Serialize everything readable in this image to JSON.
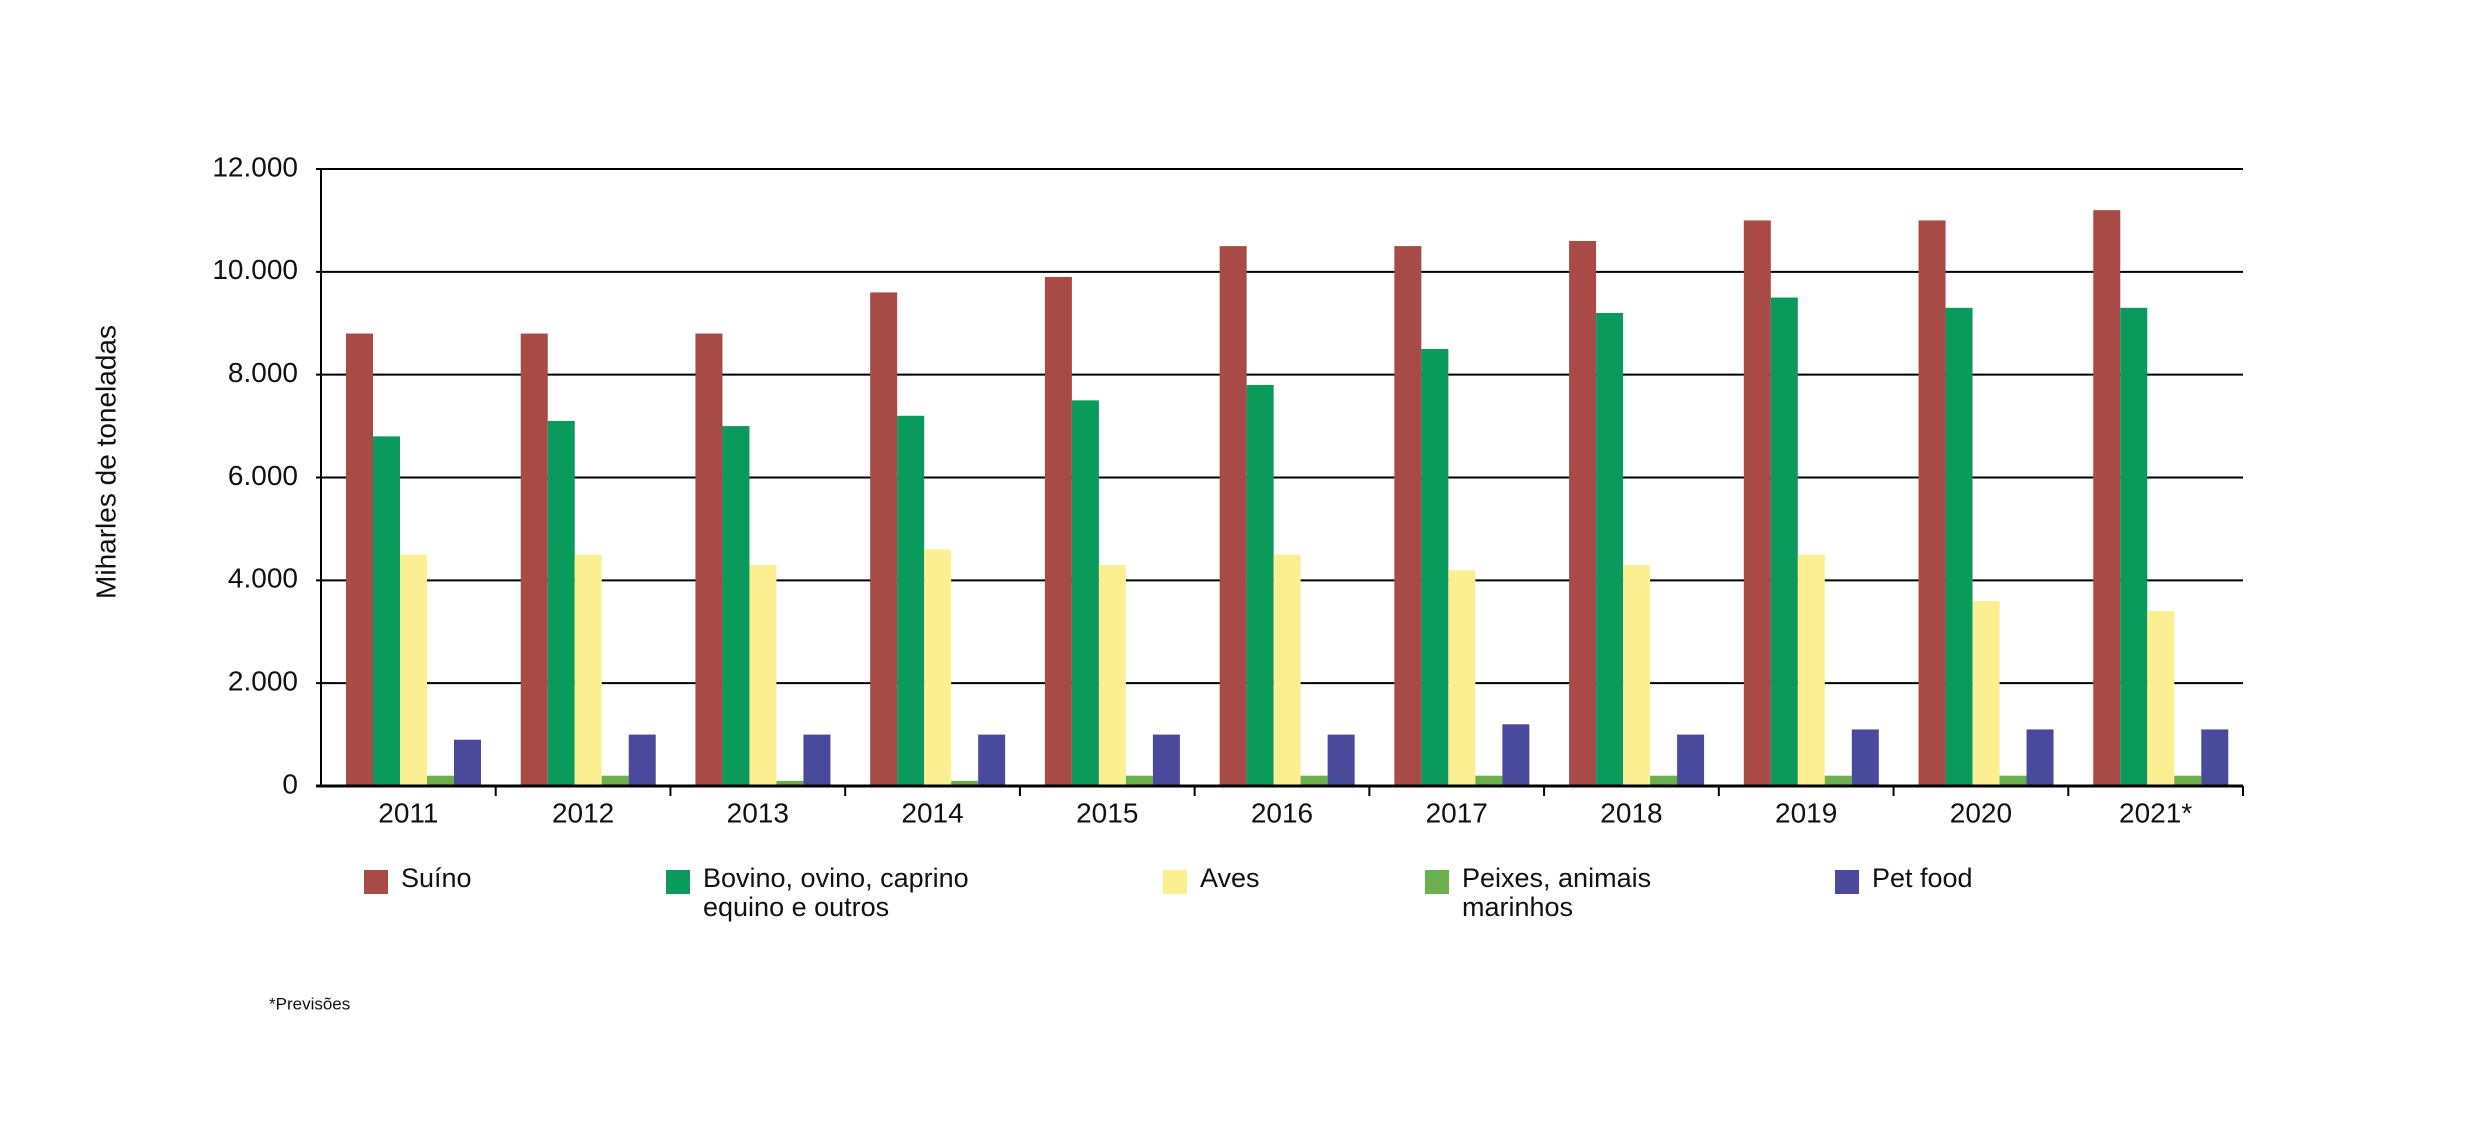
{
  "chart_data": {
    "type": "bar",
    "y_label": "Miharles de toneladas",
    "footnote": "*Previsões",
    "categories": [
      "2011",
      "2012",
      "2013",
      "2014",
      "2015",
      "2016",
      "2017",
      "2018",
      "2019",
      "2020",
      "2021*"
    ],
    "series": [
      {
        "name": "Suíno",
        "color": "#a84a45",
        "values": [
          8800,
          8800,
          8800,
          9600,
          9900,
          10500,
          10500,
          10600,
          11000,
          11000,
          11200
        ]
      },
      {
        "name": "Bovino, ovino, caprino\nequino e outros",
        "color": "#0a9a5c",
        "values": [
          6800,
          7100,
          7000,
          7200,
          7500,
          7800,
          8500,
          9200,
          9500,
          9300,
          9300
        ]
      },
      {
        "name": "Aves",
        "color": "#fbef92",
        "values": [
          4500,
          4500,
          4300,
          4600,
          4300,
          4500,
          4200,
          4300,
          4500,
          3600,
          3400
        ]
      },
      {
        "name": "Peixes, animais\nmarinhos",
        "color": "#6ab04c",
        "values": [
          200,
          200,
          100,
          100,
          200,
          200,
          200,
          200,
          200,
          200,
          200
        ]
      },
      {
        "name": "Pet food",
        "color": "#4a4a9c",
        "values": [
          900,
          1000,
          1000,
          1000,
          1000,
          1000,
          1200,
          1000,
          1100,
          1100,
          1100
        ]
      }
    ],
    "ylim": [
      0,
      12000
    ],
    "yticks": [
      0,
      {
        "value": 2000,
        "label": "2.000"
      },
      {
        "value": 4000,
        "label": "4.000"
      },
      {
        "value": 6000,
        "label": "6.000"
      },
      {
        "value": 8000,
        "label": "8.000"
      },
      {
        "value": 10000,
        "label": "10.000"
      },
      {
        "value": 12000,
        "label": "12.000"
      }
    ],
    "grid": true
  }
}
